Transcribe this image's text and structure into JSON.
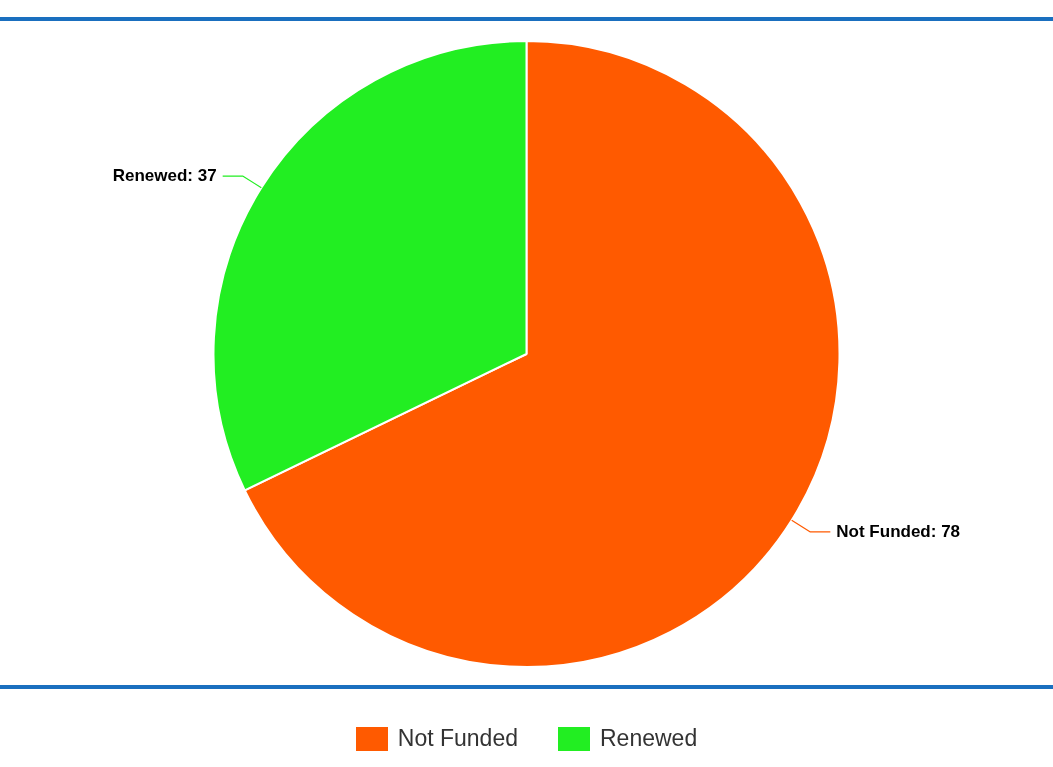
{
  "chart_data": {
    "type": "pie",
    "categories": [
      "Not Funded",
      "Renewed"
    ],
    "values": [
      78,
      37
    ],
    "value_labels": [
      "Not Funded: 78",
      "Renewed: 37"
    ],
    "colors": [
      "#ff5a00",
      "#22ee22"
    ],
    "legend": "bottom"
  }
}
